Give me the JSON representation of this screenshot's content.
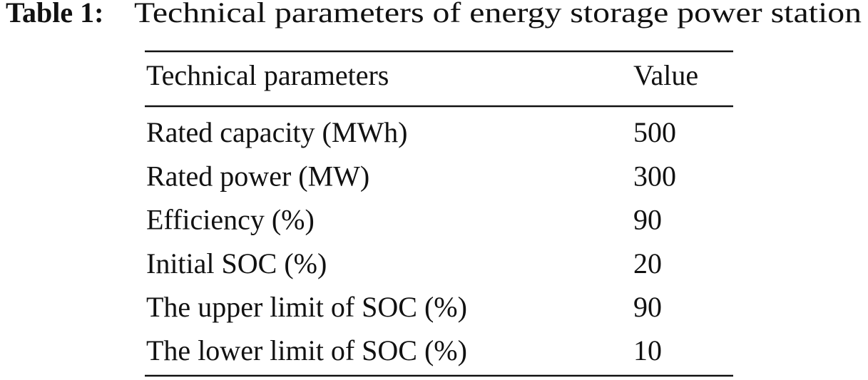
{
  "caption": {
    "label": "Table 1:",
    "text": "Technical parameters of energy storage power station"
  },
  "table": {
    "header": [
      "Technical parameters",
      "Value"
    ],
    "rows": [
      [
        "Rated capacity (MWh)",
        500
      ],
      [
        "Rated power (MW)",
        300
      ],
      [
        "Efficiency (%)",
        90
      ],
      [
        "Initial SOC (%)",
        20
      ],
      [
        "The upper limit of SOC (%)",
        90
      ],
      [
        "The lower limit of SOC (%)",
        10
      ]
    ]
  }
}
